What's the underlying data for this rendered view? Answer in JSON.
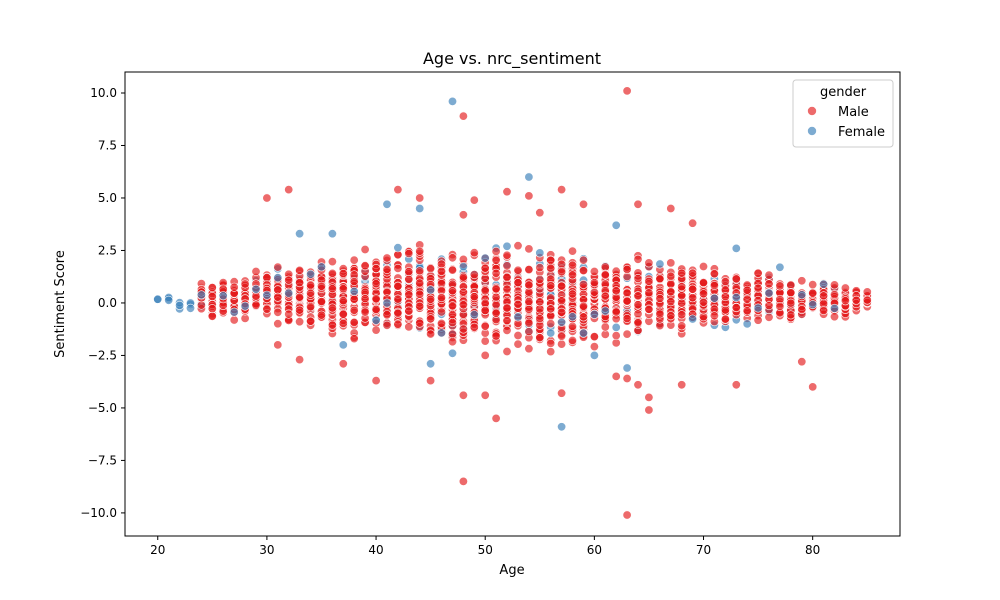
{
  "chart_data": {
    "type": "scatter",
    "title": "Age vs. nrc_sentiment",
    "xlabel": "Age",
    "ylabel": "Sentiment Score",
    "xlim": [
      17,
      88
    ],
    "ylim": [
      -11.1,
      11.0
    ],
    "xticks": [
      20,
      30,
      40,
      50,
      60,
      70,
      80
    ],
    "yticks": [
      -10.0,
      -7.5,
      -5.0,
      -2.5,
      0.0,
      2.5,
      5.0,
      7.5,
      10.0
    ],
    "grid": false,
    "legend": {
      "title": "gender",
      "placement": "top-right"
    },
    "series": [
      {
        "name": "Male",
        "color": "#e41a1c",
        "envelope": [
          [
            24,
            -0.5,
            1.4
          ],
          [
            25,
            -1.1,
            1.3
          ],
          [
            27,
            -1.0,
            1.7
          ],
          [
            29,
            -1.0,
            1.8
          ],
          [
            31,
            -1.2,
            2.0
          ],
          [
            33,
            -1.5,
            2.3
          ],
          [
            35,
            -1.8,
            2.5
          ],
          [
            37,
            -2.0,
            2.7
          ],
          [
            39,
            -2.2,
            2.9
          ],
          [
            41,
            -2.4,
            3.0
          ],
          [
            43,
            -2.6,
            3.2
          ],
          [
            45,
            -2.8,
            3.3
          ],
          [
            47,
            -2.9,
            3.3
          ],
          [
            49,
            -3.0,
            3.3
          ],
          [
            51,
            -3.0,
            3.3
          ],
          [
            53,
            -2.9,
            3.2
          ],
          [
            55,
            -2.8,
            3.1
          ],
          [
            57,
            -2.7,
            3.0
          ],
          [
            59,
            -2.6,
            2.9
          ],
          [
            61,
            -2.4,
            2.8
          ],
          [
            63,
            -2.2,
            2.7
          ],
          [
            65,
            -2.1,
            2.6
          ],
          [
            67,
            -1.9,
            2.5
          ],
          [
            69,
            -1.7,
            2.3
          ],
          [
            71,
            -1.5,
            2.1
          ],
          [
            73,
            -1.3,
            1.9
          ],
          [
            75,
            -1.2,
            1.7
          ],
          [
            77,
            -1.1,
            1.5
          ],
          [
            79,
            -1.0,
            1.3
          ],
          [
            81,
            -1.0,
            1.2
          ],
          [
            83,
            -0.9,
            1.1
          ],
          [
            85,
            -0.5,
            0.7
          ]
        ],
        "outliers": [
          [
            63,
            10.1
          ],
          [
            48,
            8.9
          ],
          [
            30,
            5.0
          ],
          [
            32,
            5.4
          ],
          [
            42,
            5.4
          ],
          [
            44,
            5.0
          ],
          [
            57,
            5.4
          ],
          [
            52,
            5.3
          ],
          [
            49,
            4.9
          ],
          [
            64,
            4.7
          ],
          [
            59,
            4.7
          ],
          [
            67,
            4.5
          ],
          [
            55,
            4.3
          ],
          [
            69,
            3.8
          ],
          [
            48,
            4.2
          ],
          [
            54,
            5.1
          ],
          [
            40,
            -3.7
          ],
          [
            45,
            -3.7
          ],
          [
            48,
            -4.4
          ],
          [
            50,
            -4.4
          ],
          [
            51,
            -5.5
          ],
          [
            57,
            -4.3
          ],
          [
            63,
            -3.6
          ],
          [
            64,
            -3.9
          ],
          [
            65,
            -4.5
          ],
          [
            65,
            -5.1
          ],
          [
            68,
            -3.9
          ],
          [
            73,
            -3.9
          ],
          [
            79,
            -2.8
          ],
          [
            80,
            -4.0
          ],
          [
            48,
            -8.5
          ],
          [
            63,
            -10.1
          ],
          [
            31,
            -2.0
          ],
          [
            33,
            -2.7
          ],
          [
            37,
            -2.9
          ],
          [
            62,
            -3.5
          ]
        ]
      },
      {
        "name": "Female",
        "color": "#377eb8",
        "envelope": [
          [
            20,
            0.1,
            0.2
          ],
          [
            21,
            -0.5,
            0.7
          ],
          [
            22,
            -0.9,
            0.6
          ],
          [
            25,
            -0.5,
            0.5
          ],
          [
            30,
            -0.8,
            1.9
          ],
          [
            35,
            -1.0,
            2.3
          ],
          [
            40,
            -1.6,
            2.6
          ],
          [
            45,
            -2.0,
            2.8
          ],
          [
            50,
            -2.2,
            2.9
          ],
          [
            55,
            -2.3,
            2.8
          ],
          [
            60,
            -2.0,
            2.5
          ],
          [
            65,
            -1.7,
            2.2
          ],
          [
            70,
            -1.4,
            2.0
          ],
          [
            75,
            -1.0,
            1.6
          ],
          [
            80,
            -0.8,
            1.1
          ],
          [
            83,
            -0.6,
            0.8
          ]
        ],
        "outliers": [
          [
            47,
            9.6
          ],
          [
            54,
            6.0
          ],
          [
            41,
            4.7
          ],
          [
            44,
            4.5
          ],
          [
            33,
            3.3
          ],
          [
            36,
            3.3
          ],
          [
            62,
            3.7
          ],
          [
            73,
            2.6
          ],
          [
            77,
            1.7
          ],
          [
            57,
            -5.9
          ],
          [
            60,
            -2.5
          ],
          [
            63,
            -3.1
          ],
          [
            47,
            -2.4
          ],
          [
            45,
            -2.9
          ],
          [
            37,
            -2.0
          ]
        ]
      }
    ]
  }
}
